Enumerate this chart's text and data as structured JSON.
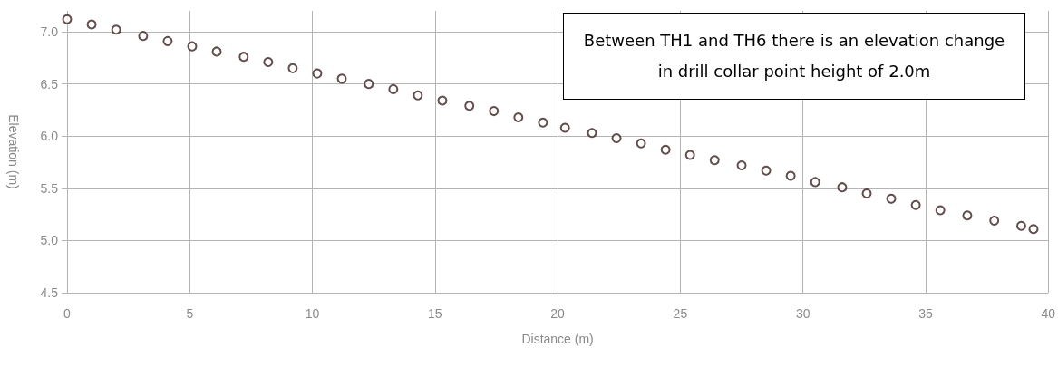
{
  "chart_data": {
    "type": "scatter",
    "xlabel": "Distance (m)",
    "ylabel": "Elevation (m)",
    "annotations": [
      "Between TH1 and TH6 there is an elevation change in drill collar point height of 2.0m"
    ],
    "x": [
      0,
      1.0,
      2.0,
      3.1,
      4.1,
      5.1,
      6.1,
      7.2,
      8.2,
      9.2,
      10.2,
      11.2,
      12.3,
      13.3,
      14.3,
      15.3,
      16.4,
      17.4,
      18.4,
      19.4,
      20.3,
      21.4,
      22.4,
      23.4,
      24.4,
      25.4,
      26.4,
      27.5,
      28.5,
      29.5,
      30.5,
      31.6,
      32.6,
      33.6,
      34.6,
      35.6,
      36.7,
      37.8,
      38.9,
      39.4
    ],
    "series": [
      {
        "color": "#3b1f1f",
        "values": [
          7.12,
          7.07,
          7.02,
          6.96,
          6.91,
          6.86,
          6.81,
          6.76,
          6.71,
          6.65,
          6.6,
          6.55,
          6.5,
          6.45,
          6.39,
          6.34,
          6.29,
          6.24,
          6.18,
          6.13,
          6.08,
          6.03,
          5.98,
          5.93,
          5.87,
          5.82,
          5.77,
          5.72,
          5.67,
          5.62,
          5.56,
          5.51,
          5.45,
          5.4,
          5.34,
          5.29,
          5.24,
          5.19,
          5.14,
          5.11
        ]
      }
    ],
    "xlim": [
      0,
      40
    ],
    "xticks": [
      0,
      5,
      10,
      15,
      20,
      25,
      30,
      35,
      40
    ],
    "ylim": [
      4.5,
      7.2
    ],
    "yticks": [
      {
        "value": 4.5,
        "label": "4.5"
      },
      {
        "value": 5,
        "label": "5.0"
      },
      {
        "value": 5.5,
        "label": "5.5"
      },
      {
        "value": 6,
        "label": "6.0"
      },
      {
        "value": 6.5,
        "label": "6.5"
      },
      {
        "value": 7,
        "label": "7.0"
      }
    ],
    "grid": true,
    "marker": "circle"
  }
}
